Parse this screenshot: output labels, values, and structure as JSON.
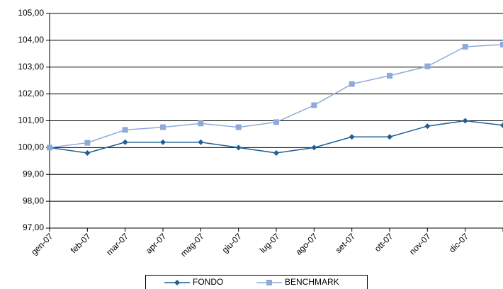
{
  "chart_data": {
    "type": "line",
    "categories": [
      "gen-07",
      "feb-07",
      "mar-07",
      "apr-07",
      "mag-07",
      "giu-07",
      "lug-07",
      "ago-07",
      "set-07",
      "ott-07",
      "nov-07",
      "dic-07",
      null
    ],
    "series": [
      {
        "name": "FONDO",
        "color": "#1f5f96",
        "marker": "diamond",
        "values": [
          100.0,
          99.8,
          100.2,
          100.2,
          100.2,
          100.0,
          99.8,
          100.0,
          100.4,
          100.4,
          100.8,
          101.0,
          100.83
        ]
      },
      {
        "name": "BENCHMARK",
        "color": "#8eaadb",
        "marker": "square",
        "values": [
          100.0,
          100.18,
          100.66,
          100.76,
          100.9,
          100.76,
          100.95,
          101.58,
          102.37,
          102.68,
          103.03,
          103.76,
          103.84
        ]
      }
    ],
    "ylim": [
      97,
      105
    ],
    "yticks": [
      {
        "value": 97,
        "label": "97,00"
      },
      {
        "value": 98,
        "label": "98,00"
      },
      {
        "value": 99,
        "label": "99,00"
      },
      {
        "value": 100,
        "label": "100,00"
      },
      {
        "value": 101,
        "label": "101,00"
      },
      {
        "value": 102,
        "label": "102,00"
      },
      {
        "value": 103,
        "label": "103,00"
      },
      {
        "value": 104,
        "label": "104,00"
      },
      {
        "value": 105,
        "label": "105,00"
      }
    ],
    "grid": true,
    "legend": "bottom"
  }
}
